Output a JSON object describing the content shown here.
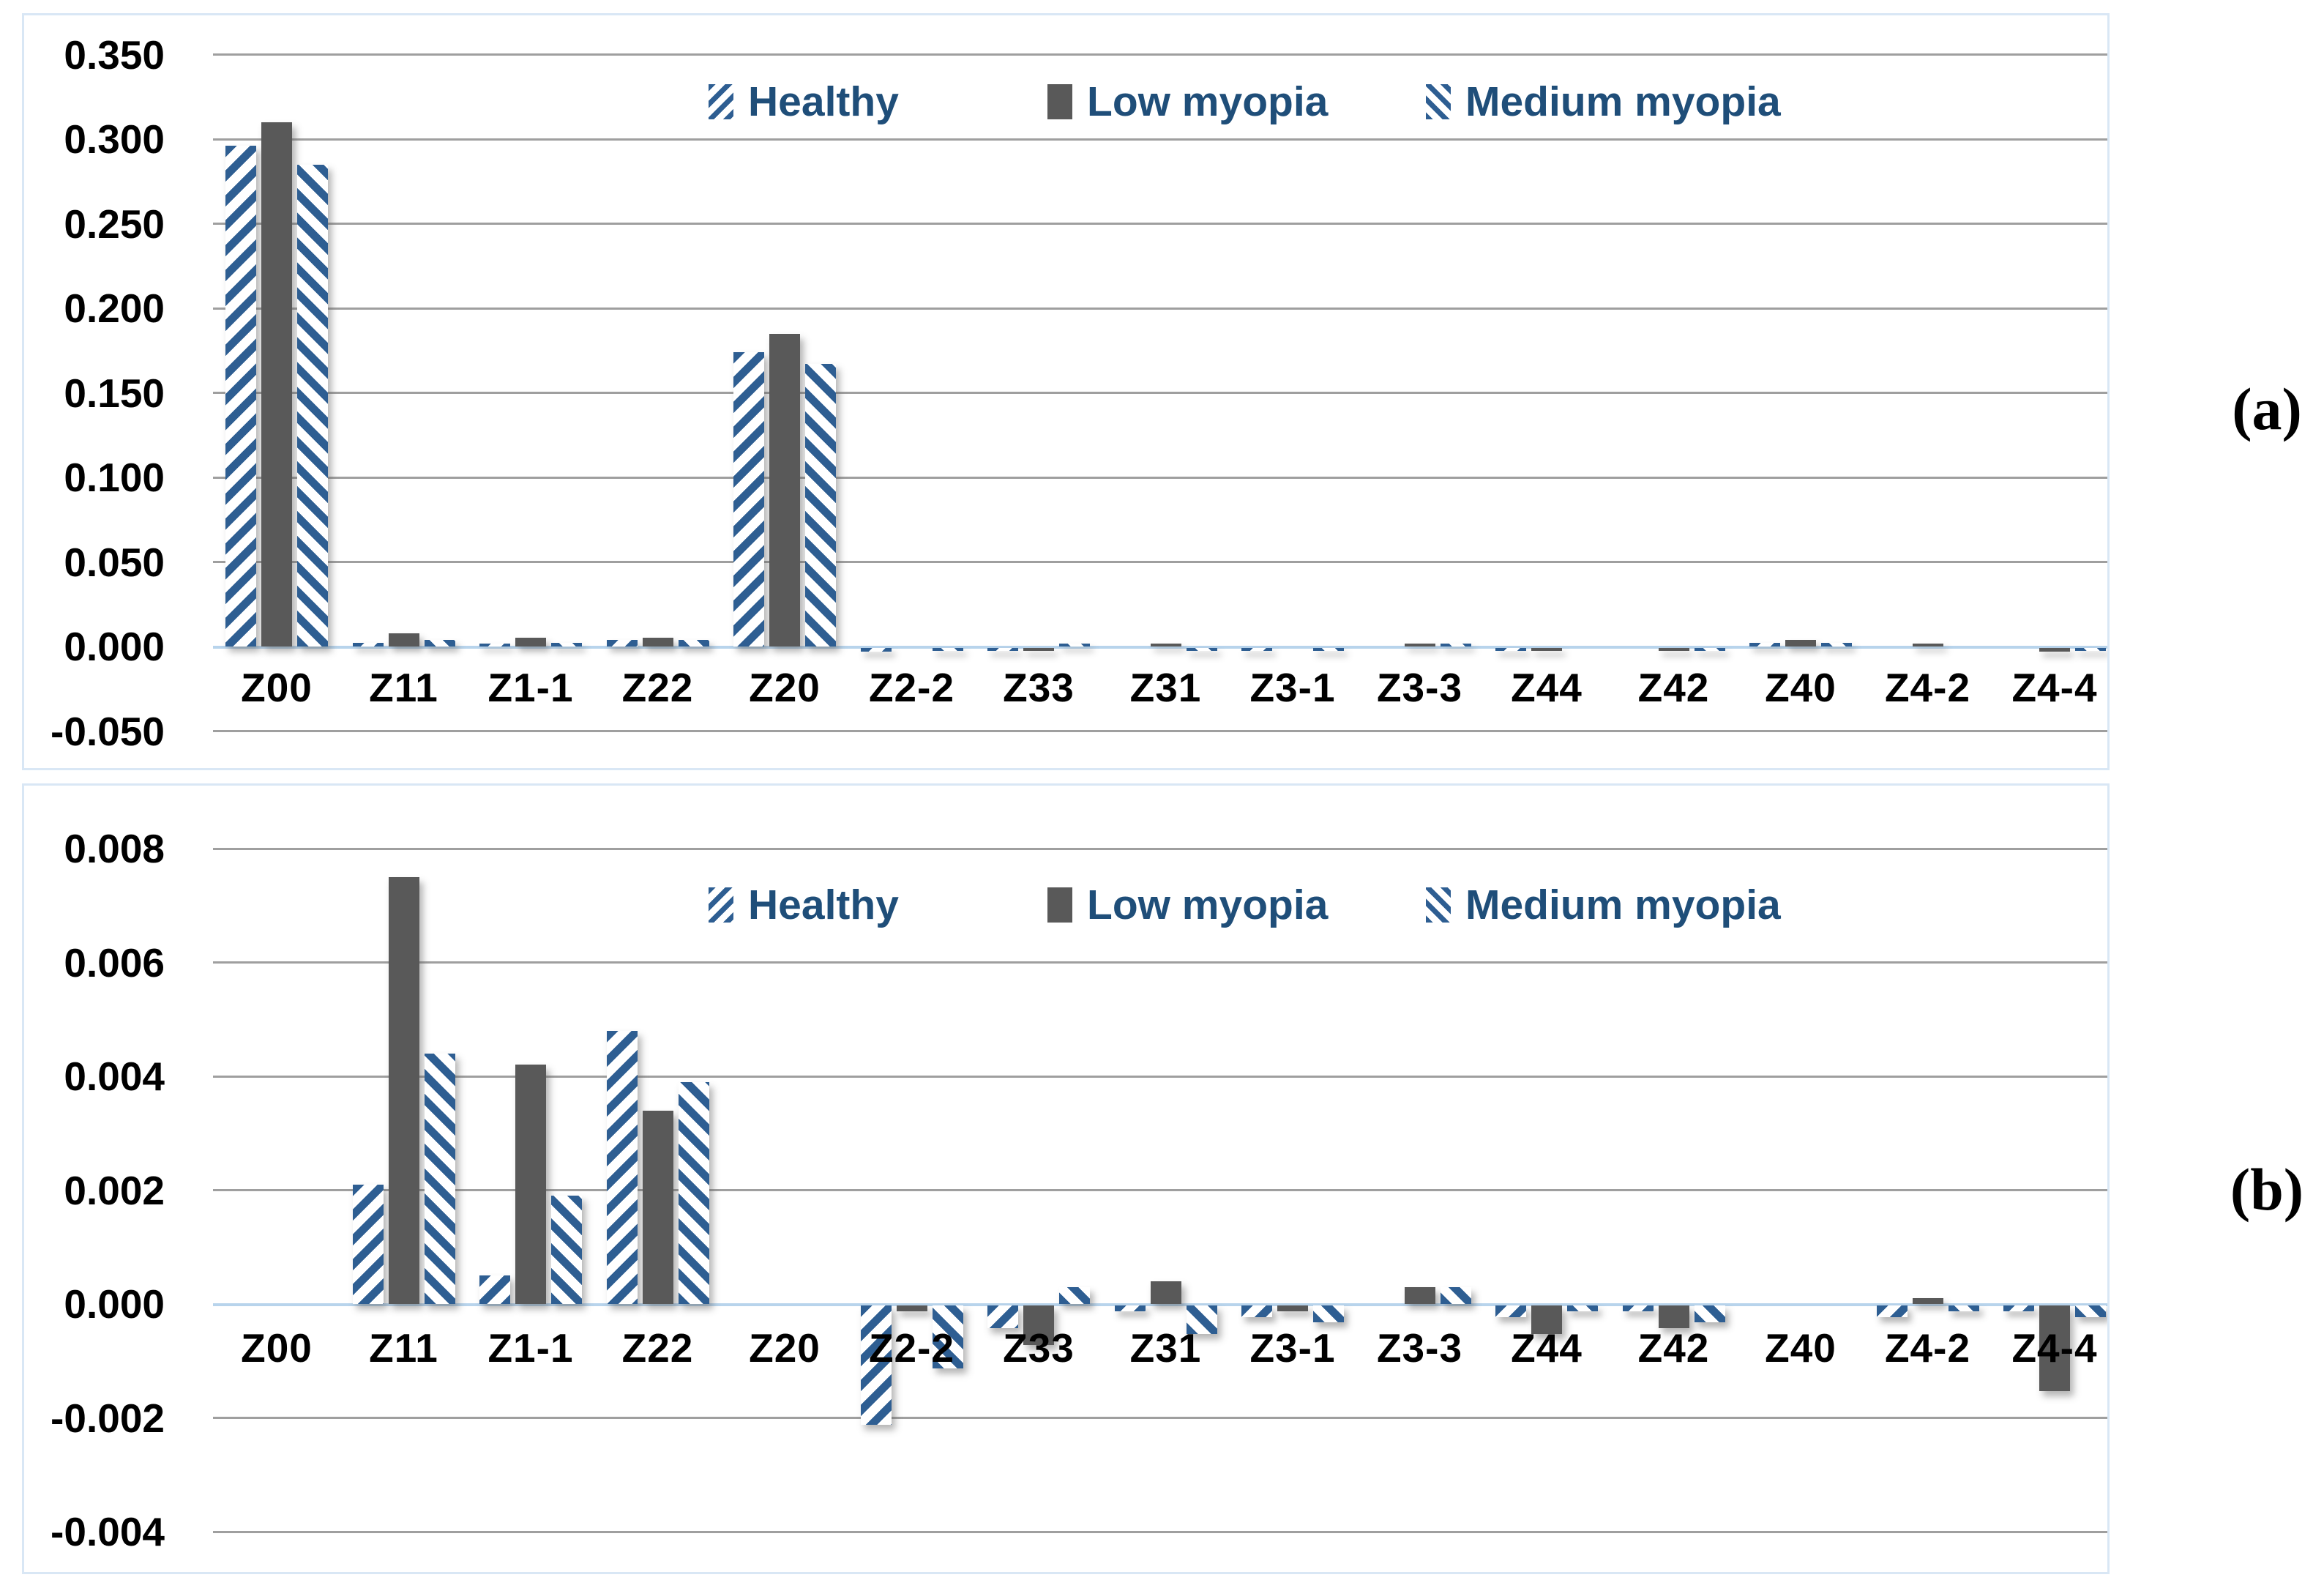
{
  "figure": {
    "panel_a_label": "(a)",
    "panel_b_label": "(b)"
  },
  "legend": {
    "items": [
      {
        "label": "Healthy",
        "marker": "diagonal-up-hatch"
      },
      {
        "label": "Low myopia",
        "marker": "solid-gray"
      },
      {
        "label": "Medium myopia",
        "marker": "diagonal-down-hatch"
      }
    ]
  },
  "colors": {
    "hatch_blue": "#2e5e92",
    "bar_gray": "#595959",
    "legend_text": "#1f4e79",
    "gridline_gray": "#9f9f9f",
    "zero_line_blue": "#b8d4ec",
    "chart_border_blue": "#d9e7f5",
    "axis_text": "#000000"
  },
  "chart_data": [
    {
      "id": "a",
      "type": "bar",
      "title": "",
      "xlabel": "",
      "ylabel": "",
      "grid": true,
      "legend_position": "top-center",
      "ylim": [
        -0.05,
        0.35
      ],
      "ytick_step": 0.05,
      "ytick_labels": [
        "0.350",
        "0.300",
        "0.250",
        "0.200",
        "0.150",
        "0.100",
        "0.050",
        "0.000",
        "-0.050"
      ],
      "categories": [
        "Z00",
        "Z11",
        "Z1-1",
        "Z22",
        "Z20",
        "Z2-2",
        "Z33",
        "Z31",
        "Z3-1",
        "Z3-3",
        "Z44",
        "Z42",
        "Z40",
        "Z4-2",
        "Z4-4"
      ],
      "series": [
        {
          "name": "Healthy",
          "values": [
            0.296,
            0.002,
            0.001,
            0.004,
            0.174,
            -0.002,
            -0.001,
            0.0,
            -0.001,
            0.0,
            -0.001,
            0.0,
            0.002,
            0.0,
            0.0
          ]
        },
        {
          "name": "Low myopia",
          "values": [
            0.31,
            0.008,
            0.005,
            0.005,
            0.185,
            0.0,
            -0.001,
            0.001,
            0.0,
            0.001,
            -0.001,
            -0.001,
            0.004,
            0.001,
            -0.002
          ]
        },
        {
          "name": "Medium myopia",
          "values": [
            0.285,
            0.004,
            0.002,
            0.004,
            0.167,
            -0.001,
            0.001,
            -0.001,
            -0.001,
            0.001,
            0.0,
            -0.001,
            0.002,
            0.0,
            -0.001
          ]
        }
      ]
    },
    {
      "id": "b",
      "type": "bar",
      "title": "",
      "xlabel": "",
      "ylabel": "",
      "grid": true,
      "legend_position": "top-center",
      "ylim": [
        -0.004,
        0.008
      ],
      "ytick_step": 0.002,
      "ytick_labels": [
        "0.008",
        "0.006",
        "0.004",
        "0.002",
        "0.000",
        "-0.002",
        "-0.004"
      ],
      "categories": [
        "Z00",
        "Z11",
        "Z1-1",
        "Z22",
        "Z20",
        "Z2-2",
        "Z33",
        "Z31",
        "Z3-1",
        "Z3-3",
        "Z44",
        "Z42",
        "Z40",
        "Z4-2",
        "Z4-4"
      ],
      "series": [
        {
          "name": "Healthy",
          "values": [
            0,
            0.0021,
            0.0005,
            0.0048,
            0,
            -0.0021,
            -0.0004,
            -0.0001,
            -0.0002,
            0.0,
            -0.0002,
            -0.0001,
            0,
            -0.0002,
            -0.0001
          ]
        },
        {
          "name": "Low myopia",
          "values": [
            0,
            0.0075,
            0.0042,
            0.0034,
            0,
            -0.0001,
            -0.0007,
            0.0004,
            -0.0001,
            0.0003,
            -0.0005,
            -0.0004,
            0,
            0.0001,
            -0.0015
          ]
        },
        {
          "name": "Medium myopia",
          "values": [
            0,
            0.0044,
            0.0019,
            0.0039,
            0,
            -0.0011,
            0.0003,
            -0.0005,
            -0.0003,
            0.0003,
            -0.0001,
            -0.0003,
            0,
            -0.0001,
            -0.0002
          ]
        }
      ]
    }
  ]
}
